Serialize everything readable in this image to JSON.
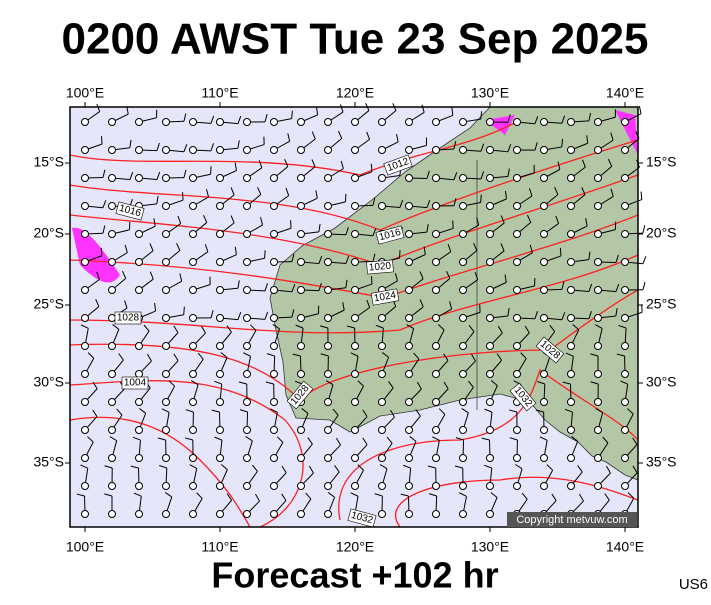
{
  "title": "0200 AWST Tue 23 Sep 2025",
  "footer": "Forecast +102 hr",
  "code": "US6",
  "copyright": "Copyright metvuw.com",
  "lon_labels": [
    "100°E",
    "110°E",
    "120°E",
    "130°E",
    "140°E"
  ],
  "lat_labels": [
    "15°S",
    "20°S",
    "25°S",
    "30°S",
    "35°S"
  ],
  "isobar_labels": [
    "1012",
    "1016",
    "1016",
    "1020",
    "1024",
    "1028",
    "1004",
    "1028",
    "1028",
    "1032",
    "1032"
  ]
}
